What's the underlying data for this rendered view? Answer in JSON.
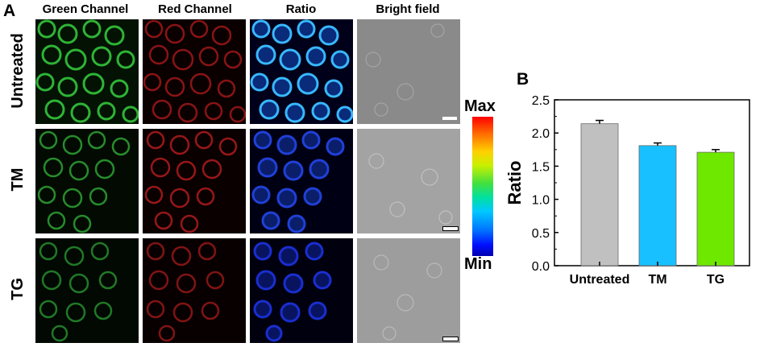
{
  "panel_a": {
    "letter": "A",
    "columns": [
      "Green Channel",
      "Red Channel",
      "Ratio",
      "Bright field"
    ],
    "rows": [
      "Untreated",
      "TM",
      "TG"
    ],
    "colorbar": {
      "max_label": "Max",
      "min_label": "Min"
    }
  },
  "panel_b": {
    "letter": "B"
  },
  "chart_data": {
    "type": "bar",
    "categories": [
      "Untreated",
      "TM",
      "TG"
    ],
    "values": [
      2.14,
      1.81,
      1.71
    ],
    "errors": [
      0.05,
      0.04,
      0.04
    ],
    "colors": [
      "#c0c0c0",
      "#18c0ff",
      "#6fe800"
    ],
    "title": "",
    "xlabel": "",
    "ylabel": "Ratio",
    "ylim": [
      0.0,
      2.5
    ],
    "yticks": [
      "0.0",
      "0.5",
      "1.0",
      "1.5",
      "2.0",
      "2.5"
    ],
    "grid": false
  }
}
